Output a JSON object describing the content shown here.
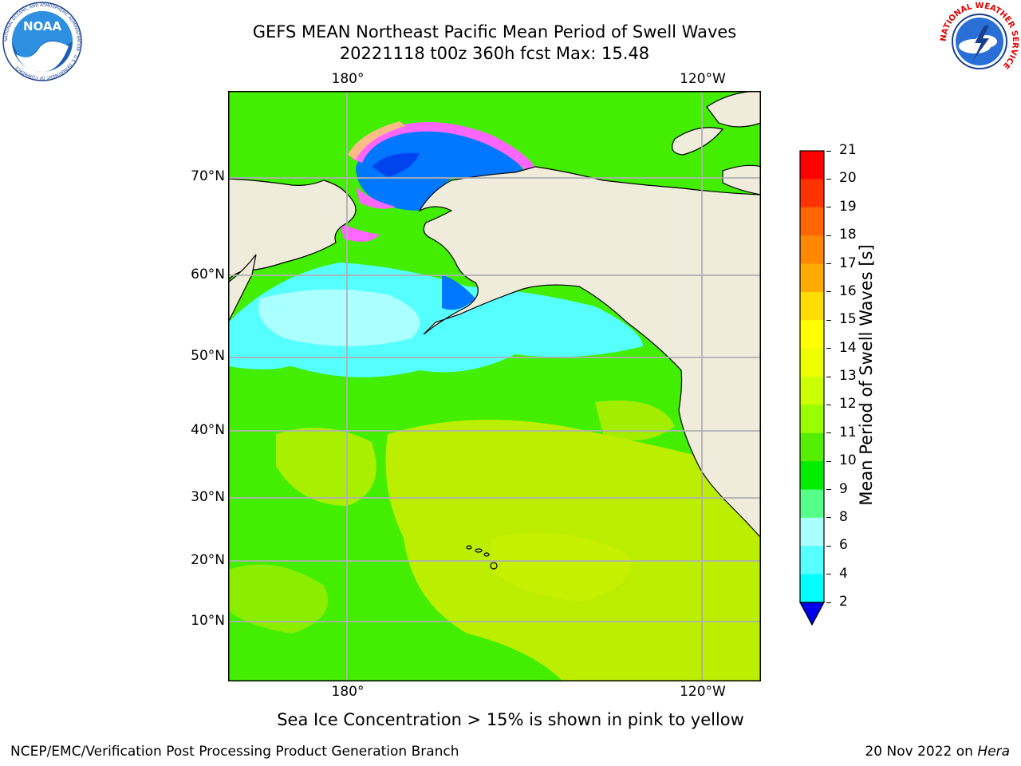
{
  "header": {
    "title_line1": "GEFS MEAN Northeast Pacific Mean Period of Swell Waves",
    "title_line2": "20221118 t00z 360h fcst   Max: 15.48"
  },
  "logos": {
    "noaa_text": "NOAA",
    "noaa_ring_text": "NATIONAL OCEANIC AND ATMOSPHERIC ADMINISTRATION · U.S. DEPARTMENT OF COMMERCE",
    "nws_ring_text": "NATIONAL WEATHER SERVICE"
  },
  "map": {
    "lon_labels_top": [
      "180°",
      "120°W"
    ],
    "lon_labels_bottom": [
      "180°",
      "120°W"
    ],
    "lat_labels": [
      "70°N",
      "60°N",
      "50°N",
      "40°N",
      "30°N",
      "20°N",
      "10°N"
    ],
    "colors": {
      "land": "#efecdc",
      "ocean_green": "#44ee00",
      "ocean_yellowgreen": "#bbee00",
      "ocean_cyan": "#55ffff",
      "ocean_lightcyan": "#aaffff",
      "ocean_blue": "#0077ff",
      "ocean_darkblue": "#0044ee",
      "ice_pink": "#ff66ff",
      "ice_peach": "#ffbb88",
      "grid": "#b0b0b0"
    }
  },
  "colorbar": {
    "label": "Mean Period of Swell Waves [s]",
    "ticks": [
      "21",
      "20",
      "19",
      "18",
      "17",
      "16",
      "15",
      "14",
      "13",
      "12",
      "11",
      "10",
      "9",
      "8",
      "6",
      "4",
      "2"
    ],
    "colors": [
      "#ff0000",
      "#ff3300",
      "#ff6600",
      "#ff8800",
      "#ffaa00",
      "#ffdd00",
      "#ffff00",
      "#eeff00",
      "#ccff00",
      "#99ff00",
      "#55ee00",
      "#00ee00",
      "#55ff88",
      "#aaffff",
      "#55ffff",
      "#00ffff",
      "#0077ff",
      "#0000ee"
    ]
  },
  "caption": "Sea Ice Concentration > 15% is shown in pink to yellow",
  "footer": {
    "left": "NCEP/EMC/Verification Post Processing Product Generation Branch",
    "right_date": "20 Nov 2022 on ",
    "right_host": "Hera"
  }
}
